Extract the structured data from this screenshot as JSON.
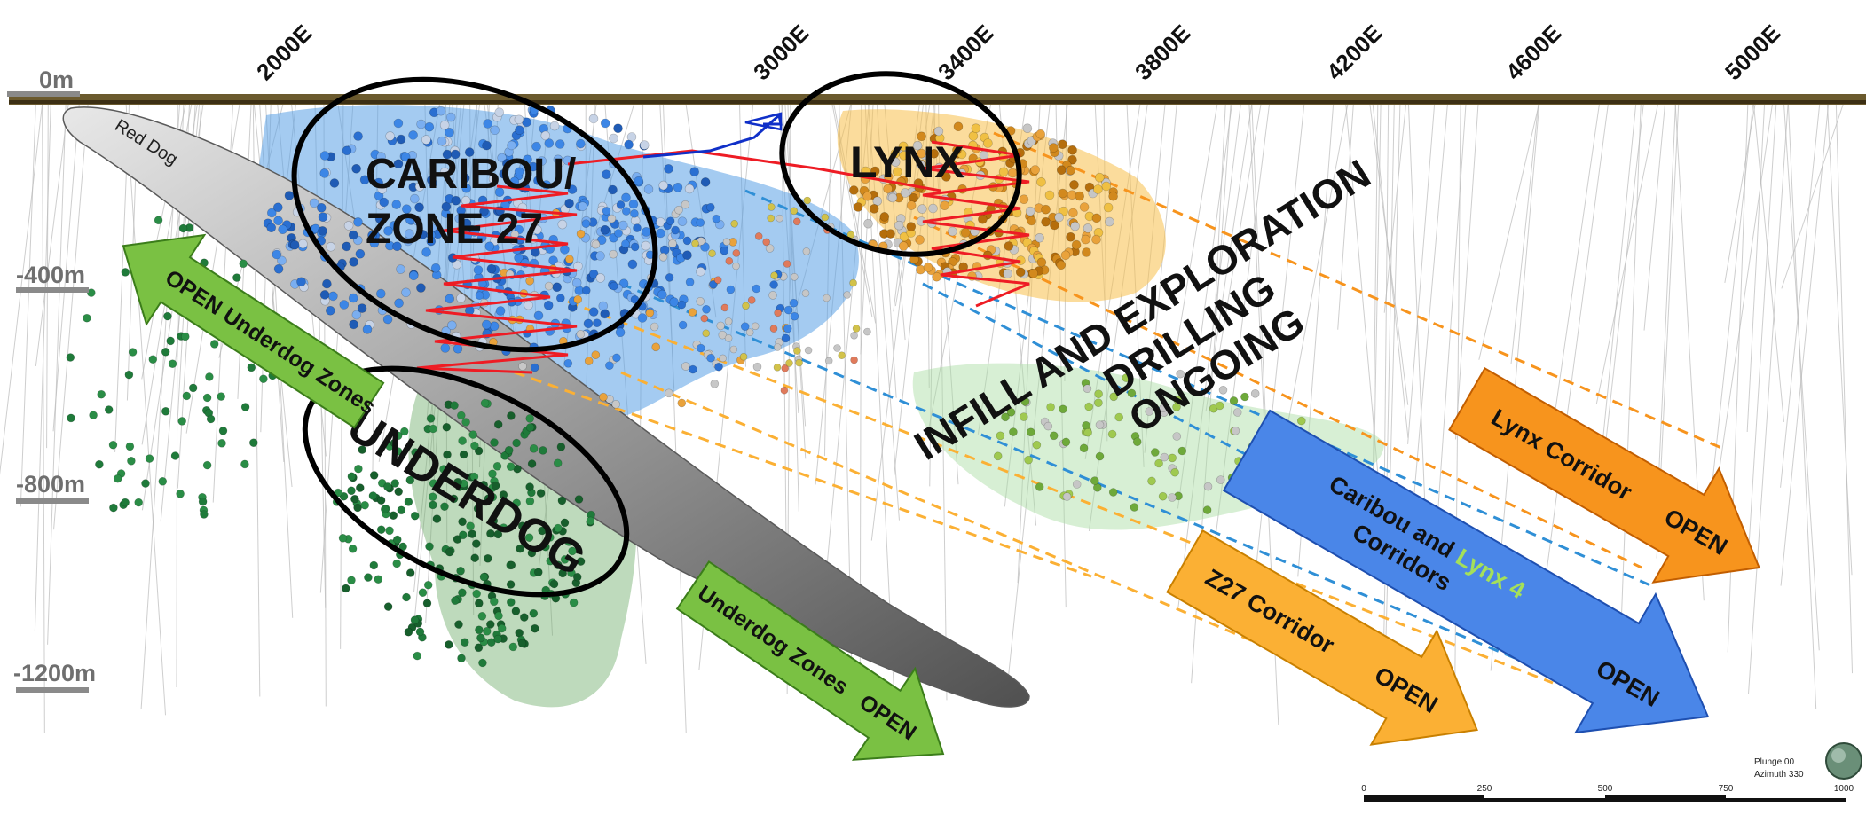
{
  "eastings": [
    "2000E",
    "3000E",
    "3400E",
    "3800E",
    "4200E",
    "4600E",
    "5000E"
  ],
  "depths": [
    "0m",
    "-400m",
    "-800m",
    "-1200m"
  ],
  "zones": {
    "red_dog": "Red Dog",
    "caribou_line1": "CARIBOU/",
    "caribou_line2": "ZONE 27",
    "lynx": "LYNX",
    "underdog": "UNDERDOG"
  },
  "drilling": {
    "line1": "INFILL AND EXPLORATION",
    "line2": "DRILLING",
    "line3": "ONGOING"
  },
  "arrows": {
    "open_underdog": "OPEN Underdog Zones",
    "underdog_open_a": "Underdog Zones",
    "underdog_open_b": "OPEN",
    "lynx_corridor_a": "Lynx Corridor",
    "lynx_corridor_b": "OPEN",
    "caribou_a": "Caribou and",
    "caribou_lynx4": "Lynx 4",
    "caribou_b": "Corridors",
    "caribou_open": "OPEN",
    "z27_a": "Z27 Corridor",
    "z27_b": "OPEN"
  },
  "scale": {
    "ticks": [
      "0",
      "250",
      "500",
      "750",
      "1000"
    ]
  },
  "orientation": {
    "plunge": "Plunge 00",
    "azimuth": "Azimuth 330"
  },
  "colors": {
    "underdog_green": "#7ac143",
    "lynx_orange": "#f7941d",
    "caribou_blue": "#4a86e8",
    "z27_yellow": "#fbb034",
    "lynx4_text": "#a4e05a",
    "ellipse": "#000000",
    "red_trace": "#ee1c24"
  }
}
